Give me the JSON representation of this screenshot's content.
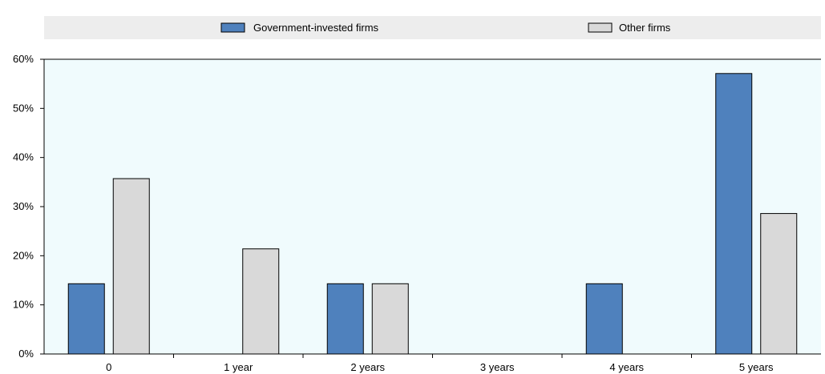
{
  "chart_data": {
    "type": "bar",
    "categories": [
      "0",
      "1 year",
      "2 years",
      "3 years",
      "4 years",
      "5 years"
    ],
    "series": [
      {
        "name": "Government-invested firms",
        "values": [
          14.3,
          0,
          14.3,
          0,
          14.3,
          57.1
        ],
        "color": "#4f81bd"
      },
      {
        "name": "Other firms",
        "values": [
          35.7,
          21.4,
          14.3,
          0,
          0,
          28.6
        ],
        "color": "#d9d9d9"
      }
    ],
    "yticks": [
      "0%",
      "10%",
      "20%",
      "30%",
      "40%",
      "50%",
      "60%"
    ],
    "ylim": [
      0,
      60
    ],
    "xlabel": "",
    "ylabel": "",
    "grid": false,
    "legend_position": "top",
    "plot_background": "#f0fbfd",
    "legend_background": "#ededed",
    "bar_outline": "#000000"
  }
}
